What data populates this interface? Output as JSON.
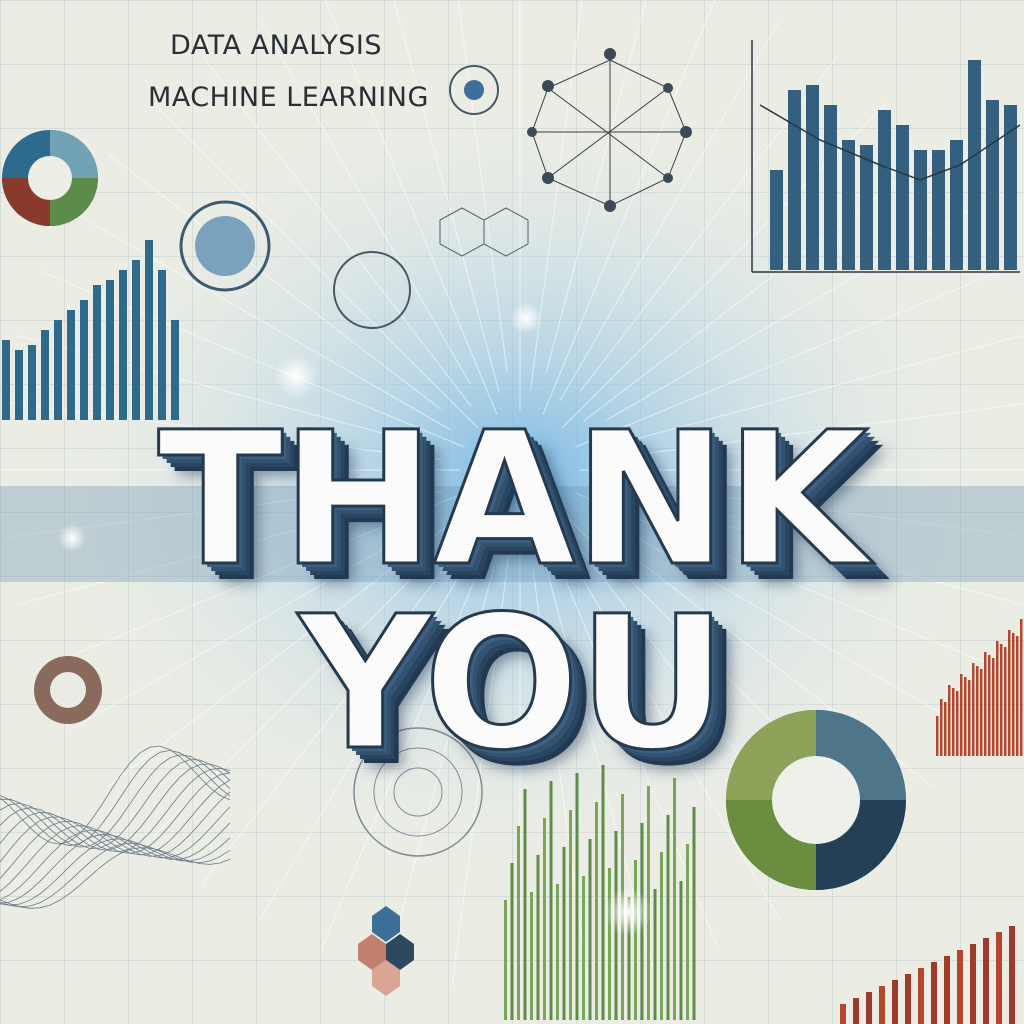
{
  "captions": {
    "line1": "DATA ANALYSIS",
    "line2": "MACHINE LEARNING"
  },
  "headline": "THANK YOU",
  "colors": {
    "background": "#e9ece4",
    "bar_blue": "#2f6a8a",
    "bar_green": "#6e9a48",
    "bar_red": "#b4462e",
    "glow": "#8fc3e6",
    "text_dark": "#26394d"
  }
}
